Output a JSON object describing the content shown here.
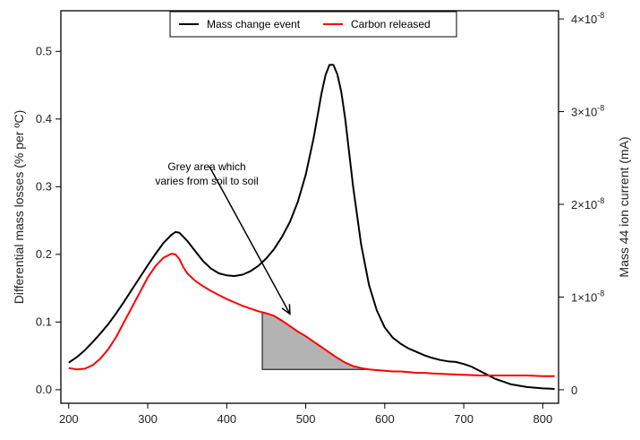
{
  "chart_data": {
    "type": "line",
    "x_ticks": [
      200,
      300,
      400,
      500,
      600,
      700,
      800
    ],
    "xlim": [
      190,
      820
    ],
    "y_left": {
      "label": "Differential mass losses (% per ºC)",
      "ticks": [
        "0.0",
        "0.1",
        "0.2",
        "0.3",
        "0.4",
        "0.5"
      ],
      "tick_values": [
        0,
        0.1,
        0.2,
        0.3,
        0.4,
        0.5
      ],
      "lim": [
        -0.02,
        0.56
      ]
    },
    "y_right": {
      "label": "Mass 44 ion current (mA)",
      "ticks": [
        {
          "value": 0,
          "mantissa": "0",
          "exponent": ""
        },
        {
          "value": 1,
          "mantissa": "1×10",
          "exponent": "-8"
        },
        {
          "value": 2,
          "mantissa": "2×10",
          "exponent": "-8"
        },
        {
          "value": 3,
          "mantissa": "3×10",
          "exponent": "-8"
        },
        {
          "value": 4,
          "mantissa": "4×10",
          "exponent": "-8"
        }
      ]
    },
    "legend": {
      "position": "top-center",
      "entries": [
        {
          "label": "Mass change event",
          "color": "#000000"
        },
        {
          "label": "Carbon released",
          "color": "#ff0000"
        }
      ]
    },
    "annotation": {
      "lines": [
        "Grey area which",
        "varies from soil to soil"
      ],
      "arrow_from": [
        378,
        0.33
      ],
      "arrow_to": [
        480,
        0.112
      ],
      "grey_area": {
        "x_start": 445,
        "baseline": 0.03,
        "fill": "#b3b3b3"
      }
    },
    "series": [
      {
        "name": "Mass change event",
        "color": "#000000",
        "x": [
          200,
          210,
          220,
          230,
          240,
          250,
          260,
          270,
          280,
          290,
          300,
          310,
          320,
          330,
          335,
          340,
          350,
          360,
          370,
          380,
          390,
          400,
          410,
          420,
          430,
          440,
          450,
          460,
          470,
          480,
          490,
          500,
          510,
          515,
          520,
          525,
          530,
          535,
          540,
          545,
          550,
          555,
          560,
          570,
          580,
          590,
          600,
          610,
          620,
          630,
          640,
          650,
          660,
          670,
          680,
          690,
          700,
          710,
          720,
          730,
          740,
          750,
          760,
          770,
          780,
          790,
          800,
          810,
          815
        ],
        "y": [
          0.04,
          0.048,
          0.058,
          0.07,
          0.083,
          0.097,
          0.113,
          0.13,
          0.148,
          0.166,
          0.184,
          0.201,
          0.217,
          0.229,
          0.233,
          0.232,
          0.22,
          0.205,
          0.19,
          0.179,
          0.172,
          0.169,
          0.168,
          0.17,
          0.175,
          0.183,
          0.194,
          0.208,
          0.226,
          0.248,
          0.278,
          0.318,
          0.372,
          0.405,
          0.438,
          0.465,
          0.48,
          0.48,
          0.466,
          0.44,
          0.4,
          0.35,
          0.3,
          0.215,
          0.155,
          0.117,
          0.092,
          0.077,
          0.068,
          0.061,
          0.056,
          0.051,
          0.047,
          0.044,
          0.042,
          0.041,
          0.038,
          0.034,
          0.028,
          0.022,
          0.016,
          0.012,
          0.008,
          0.006,
          0.004,
          0.003,
          0.002,
          0.0015,
          0.001
        ]
      },
      {
        "name": "Carbon released",
        "color": "#ff0000",
        "x": [
          200,
          210,
          220,
          230,
          240,
          250,
          260,
          270,
          280,
          290,
          300,
          310,
          320,
          330,
          335,
          340,
          345,
          350,
          360,
          370,
          380,
          390,
          400,
          410,
          420,
          430,
          440,
          450,
          460,
          470,
          480,
          490,
          500,
          510,
          520,
          530,
          540,
          550,
          560,
          570,
          580,
          590,
          600,
          610,
          620,
          630,
          640,
          650,
          660,
          680,
          700,
          720,
          740,
          760,
          780,
          800,
          815
        ],
        "y": [
          0.032,
          0.03,
          0.031,
          0.036,
          0.046,
          0.06,
          0.078,
          0.1,
          0.122,
          0.144,
          0.166,
          0.183,
          0.195,
          0.201,
          0.2,
          0.193,
          0.181,
          0.172,
          0.161,
          0.153,
          0.146,
          0.14,
          0.134,
          0.129,
          0.124,
          0.12,
          0.116,
          0.113,
          0.109,
          0.102,
          0.094,
          0.086,
          0.079,
          0.071,
          0.063,
          0.055,
          0.047,
          0.04,
          0.035,
          0.032,
          0.03,
          0.029,
          0.028,
          0.027,
          0.027,
          0.026,
          0.025,
          0.025,
          0.024,
          0.023,
          0.022,
          0.021,
          0.021,
          0.021,
          0.021,
          0.02,
          0.02
        ]
      }
    ]
  }
}
